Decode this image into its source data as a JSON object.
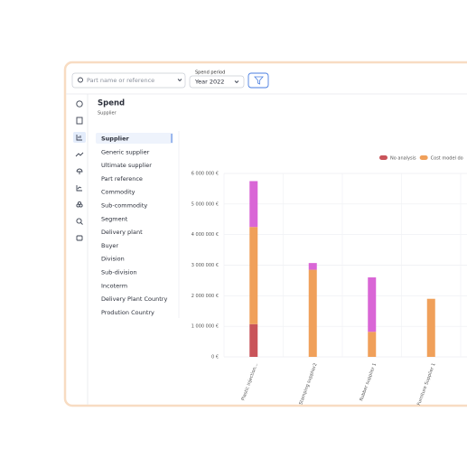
{
  "search": {
    "placeholder": "Part name or reference"
  },
  "period": {
    "label": "Spend period",
    "value": "Year 2022"
  },
  "panel": {
    "title": "Spend",
    "subtitle": "Supplier"
  },
  "list_items": [
    "Supplier",
    "Generic supplier",
    "Ultimate supplier",
    "Part reference",
    "Commodity",
    "Sub-commodity",
    "Segment",
    "Delivery plant",
    "Buyer",
    "Division",
    "Sub-division",
    "Incoterm",
    "Delivery Plant Country",
    "Prodution Country"
  ],
  "chart_data": {
    "type": "stacked-bar",
    "categories": [
      "Plastic injection...",
      "Stamping supplier2",
      "Rubber supplier 1",
      "Furniture Supplier 1"
    ],
    "series": [
      {
        "name": "No analysis",
        "color": "#c9545a",
        "values": [
          1070000,
          0,
          0,
          0
        ]
      },
      {
        "name": "Cost model do",
        "color": "#f0a05a",
        "values": [
          3180000,
          2850000,
          820000,
          1900000
        ]
      },
      {
        "color": "#d966d6",
        "values": [
          1500000,
          220000,
          1780000,
          0
        ]
      }
    ],
    "ylim": [
      0,
      6000000
    ],
    "yticks": [
      {
        "value": 0,
        "label": "0 €"
      },
      {
        "value": 1000000,
        "label": "1 000 000 €"
      },
      {
        "value": 2000000,
        "label": "2 000 000 €"
      },
      {
        "value": 3000000,
        "label": "3 000 000 €"
      },
      {
        "value": 4000000,
        "label": "4 000 000 €"
      },
      {
        "value": 5000000,
        "label": "5 000 000 €"
      },
      {
        "value": 6000000,
        "label": "6 000 000 €"
      }
    ],
    "grid": true
  }
}
